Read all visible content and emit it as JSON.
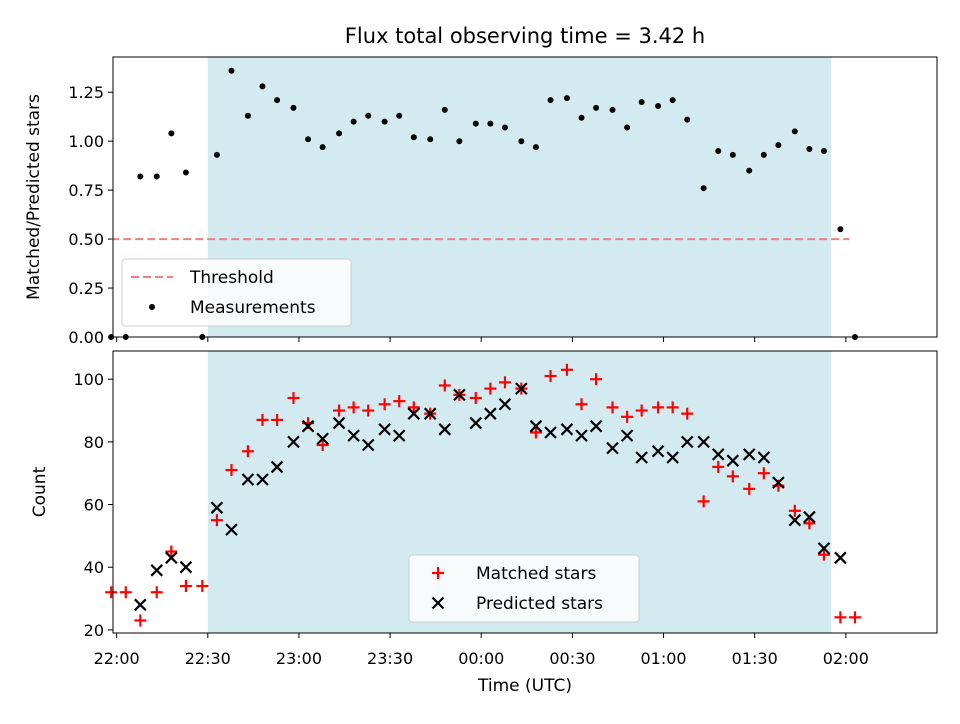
{
  "chart_data": {
    "title": "Flux total observing time = 3.42 h",
    "xlabel": "Time (UTC)",
    "x_tick_labels": [
      "22:00",
      "22:30",
      "23:00",
      "23:30",
      "00:00",
      "00:30",
      "01:00",
      "01:30",
      "02:00"
    ],
    "x_tick_hours": [
      22.0,
      22.5,
      23.0,
      23.5,
      24.0,
      24.5,
      25.0,
      25.5,
      26.0
    ],
    "xlim_hours": [
      21.98,
      26.5
    ],
    "shaded_span_hours": [
      22.5,
      25.92
    ],
    "colors": {
      "shade": "#d4eaf1",
      "threshold": "#f08080",
      "matched": "#ff0000",
      "predicted": "#000000",
      "measurements": "#000000"
    },
    "top_panel": {
      "type": "scatter",
      "ylabel": "Matched/Predicted stars",
      "ylim": [
        0,
        1.43
      ],
      "y_ticks": [
        0.0,
        0.25,
        0.5,
        0.75,
        1.0,
        1.25
      ],
      "y_tick_labels": [
        "0.00",
        "0.25",
        "0.50",
        "0.75",
        "1.00",
        "1.25"
      ],
      "threshold": {
        "name": "Threshold",
        "value": 0.5,
        "x_range_hours": [
          21.97,
          26.02
        ]
      },
      "measurements": {
        "name": "Measurements",
        "x_hours": [
          21.97,
          22.05,
          22.13,
          22.22,
          22.3,
          22.38,
          22.47,
          22.55,
          22.63,
          22.72,
          22.8,
          22.88,
          22.97,
          23.05,
          23.13,
          23.22,
          23.3,
          23.38,
          23.47,
          23.55,
          23.63,
          23.72,
          23.8,
          23.88,
          23.97,
          24.05,
          24.13,
          24.22,
          24.3,
          24.38,
          24.47,
          24.55,
          24.63,
          24.72,
          24.8,
          24.88,
          24.97,
          25.05,
          25.13,
          25.22,
          25.3,
          25.38,
          25.47,
          25.55,
          25.63,
          25.72,
          25.8,
          25.88,
          25.97,
          26.05
        ],
        "values": [
          0.0,
          0.0,
          0.82,
          0.82,
          1.04,
          0.84,
          0.0,
          0.93,
          1.36,
          1.13,
          1.28,
          1.21,
          1.17,
          1.01,
          0.97,
          1.04,
          1.1,
          1.13,
          1.1,
          1.13,
          1.02,
          1.01,
          1.16,
          1.0,
          1.09,
          1.09,
          1.07,
          1.0,
          0.97,
          1.21,
          1.22,
          1.12,
          1.17,
          1.16,
          1.07,
          1.2,
          1.18,
          1.21,
          1.11,
          0.76,
          0.95,
          0.93,
          0.85,
          0.93,
          0.98,
          1.05,
          0.96,
          0.95,
          0.55,
          0.0
        ]
      },
      "legend_position": "lower-left"
    },
    "bottom_panel": {
      "type": "scatter",
      "ylabel": "Count",
      "ylim": [
        19,
        109
      ],
      "y_ticks": [
        20,
        40,
        60,
        80,
        100
      ],
      "y_tick_labels": [
        "20",
        "40",
        "60",
        "80",
        "100"
      ],
      "series": [
        {
          "name": "Matched stars",
          "marker": "plus",
          "x_hours": [
            21.97,
            22.05,
            22.13,
            22.22,
            22.3,
            22.38,
            22.47,
            22.55,
            22.63,
            22.72,
            22.8,
            22.88,
            22.97,
            23.05,
            23.13,
            23.22,
            23.3,
            23.38,
            23.47,
            23.55,
            23.63,
            23.72,
            23.8,
            23.88,
            23.97,
            24.05,
            24.13,
            24.22,
            24.3,
            24.38,
            24.47,
            24.55,
            24.63,
            24.72,
            24.8,
            24.88,
            24.97,
            25.05,
            25.13,
            25.22,
            25.3,
            25.38,
            25.47,
            25.55,
            25.63,
            25.72,
            25.8,
            25.88,
            25.97,
            26.05
          ],
          "values": [
            32,
            32,
            23,
            32,
            45,
            34,
            34,
            55,
            71,
            77,
            87,
            87,
            94,
            86,
            79,
            90,
            91,
            90,
            92,
            93,
            91,
            89,
            98,
            95,
            94,
            97,
            99,
            97,
            83,
            101,
            103,
            92,
            100,
            91,
            88,
            90,
            91,
            91,
            89,
            61,
            72,
            69,
            65,
            70,
            66,
            58,
            54,
            44,
            24,
            24
          ]
        },
        {
          "name": "Predicted stars",
          "marker": "x",
          "x_hours": [
            22.13,
            22.22,
            22.3,
            22.38,
            22.55,
            22.63,
            22.72,
            22.8,
            22.88,
            22.97,
            23.05,
            23.13,
            23.22,
            23.3,
            23.38,
            23.47,
            23.55,
            23.63,
            23.72,
            23.8,
            23.88,
            23.97,
            24.05,
            24.13,
            24.22,
            24.3,
            24.38,
            24.47,
            24.55,
            24.63,
            24.72,
            24.8,
            24.88,
            24.97,
            25.05,
            25.13,
            25.22,
            25.3,
            25.38,
            25.47,
            25.55,
            25.63,
            25.72,
            25.8,
            25.88,
            25.97
          ],
          "values": [
            28,
            39,
            43,
            40,
            59,
            52,
            68,
            68,
            72,
            80,
            85,
            81,
            86,
            82,
            79,
            84,
            82,
            89,
            89,
            84,
            95,
            86,
            89,
            92,
            97,
            85,
            83,
            84,
            82,
            85,
            78,
            82,
            75,
            77,
            75,
            80,
            80,
            76,
            74,
            76,
            75,
            67,
            55,
            56,
            46,
            43
          ]
        }
      ],
      "legend_position": "lower-center"
    }
  }
}
